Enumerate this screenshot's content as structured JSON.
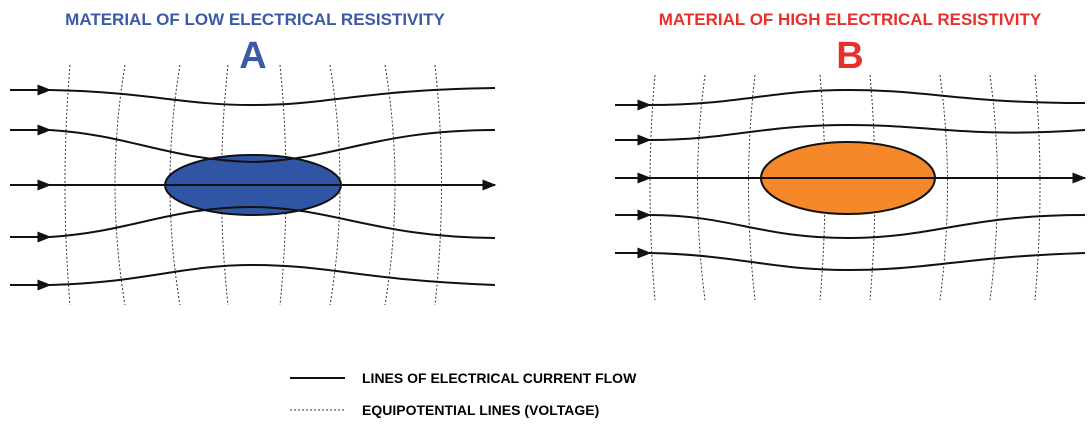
{
  "panels": [
    {
      "title": "MATERIAL OF LOW ELECTRICAL RESISTIVITY",
      "label": "A"
    },
    {
      "title": "MATERIAL OF HIGH ELECTRICAL RESISTIVITY",
      "label": "B"
    }
  ],
  "legend": [
    {
      "label": "LINES OF ELECTRICAL CURRENT FLOW"
    },
    {
      "label": "EQUIPOTENTIAL LINES (VOLTAGE)"
    }
  ]
}
